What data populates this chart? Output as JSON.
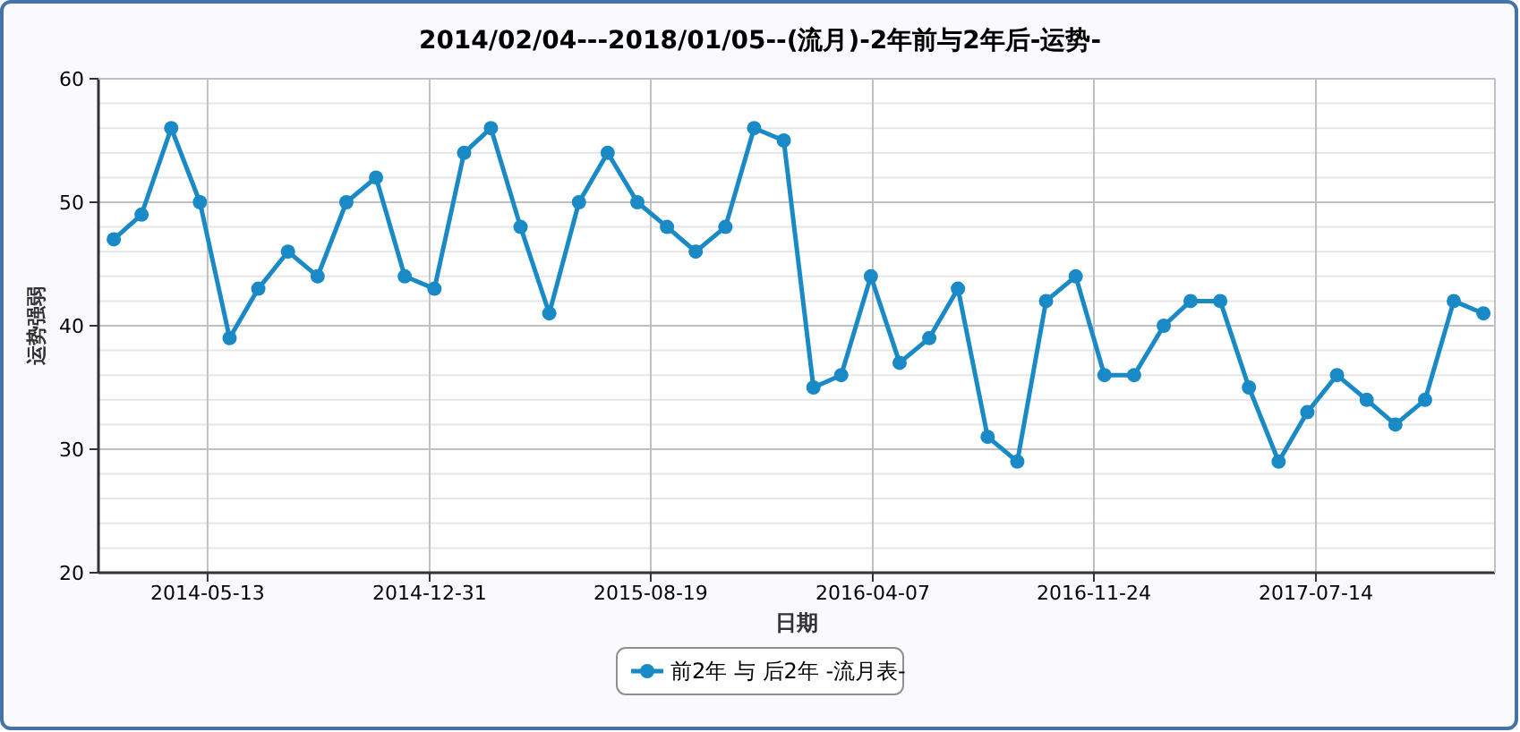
{
  "chart_data": {
    "type": "line",
    "title": "2014/02/04---2018/01/05--(流月)-2年前与2年后-运势-",
    "xlabel": "日期",
    "ylabel": "运势强弱",
    "x": [
      "2014-02-04",
      "2014-03-05",
      "2014-04-05",
      "2014-05-05",
      "2014-06-05",
      "2014-07-05",
      "2014-08-05",
      "2014-09-05",
      "2014-10-05",
      "2014-11-05",
      "2014-12-05",
      "2015-01-05",
      "2015-02-05",
      "2015-03-05",
      "2015-04-05",
      "2015-05-05",
      "2015-06-05",
      "2015-07-05",
      "2015-08-05",
      "2015-09-05",
      "2015-10-05",
      "2015-11-05",
      "2015-12-05",
      "2016-01-05",
      "2016-02-05",
      "2016-03-05",
      "2016-04-05",
      "2016-05-05",
      "2016-06-05",
      "2016-07-05",
      "2016-08-05",
      "2016-09-05",
      "2016-10-05",
      "2016-11-05",
      "2016-12-05",
      "2017-01-05",
      "2017-02-05",
      "2017-03-05",
      "2017-04-05",
      "2017-05-05",
      "2017-06-05",
      "2017-07-05",
      "2017-08-05",
      "2017-09-05",
      "2017-10-05",
      "2017-11-05",
      "2017-12-05",
      "2018-01-05"
    ],
    "series": [
      {
        "name": "前2年 与 后2年 -流月表-",
        "color": "#1a8ac6",
        "values": [
          47,
          49,
          56,
          50,
          39,
          43,
          46,
          44,
          50,
          52,
          44,
          43,
          54,
          56,
          48,
          41,
          50,
          54,
          50,
          48,
          46,
          48,
          56,
          55,
          35,
          36,
          44,
          37,
          39,
          43,
          31,
          29,
          42,
          44,
          36,
          36,
          40,
          42,
          42,
          35,
          29,
          33,
          36,
          34,
          32,
          34,
          42,
          41
        ]
      }
    ],
    "xlim": [
      "2014-01-19",
      "2018-01-17"
    ],
    "xticks": [
      "2014-05-13",
      "2014-12-31",
      "2015-08-19",
      "2016-04-07",
      "2016-11-24",
      "2017-07-14"
    ],
    "ylim": [
      20,
      60
    ],
    "yticks": [
      20,
      30,
      40,
      50,
      60
    ],
    "grid": true,
    "legend": "bottom",
    "marker": "circle",
    "line_style": "solid"
  }
}
